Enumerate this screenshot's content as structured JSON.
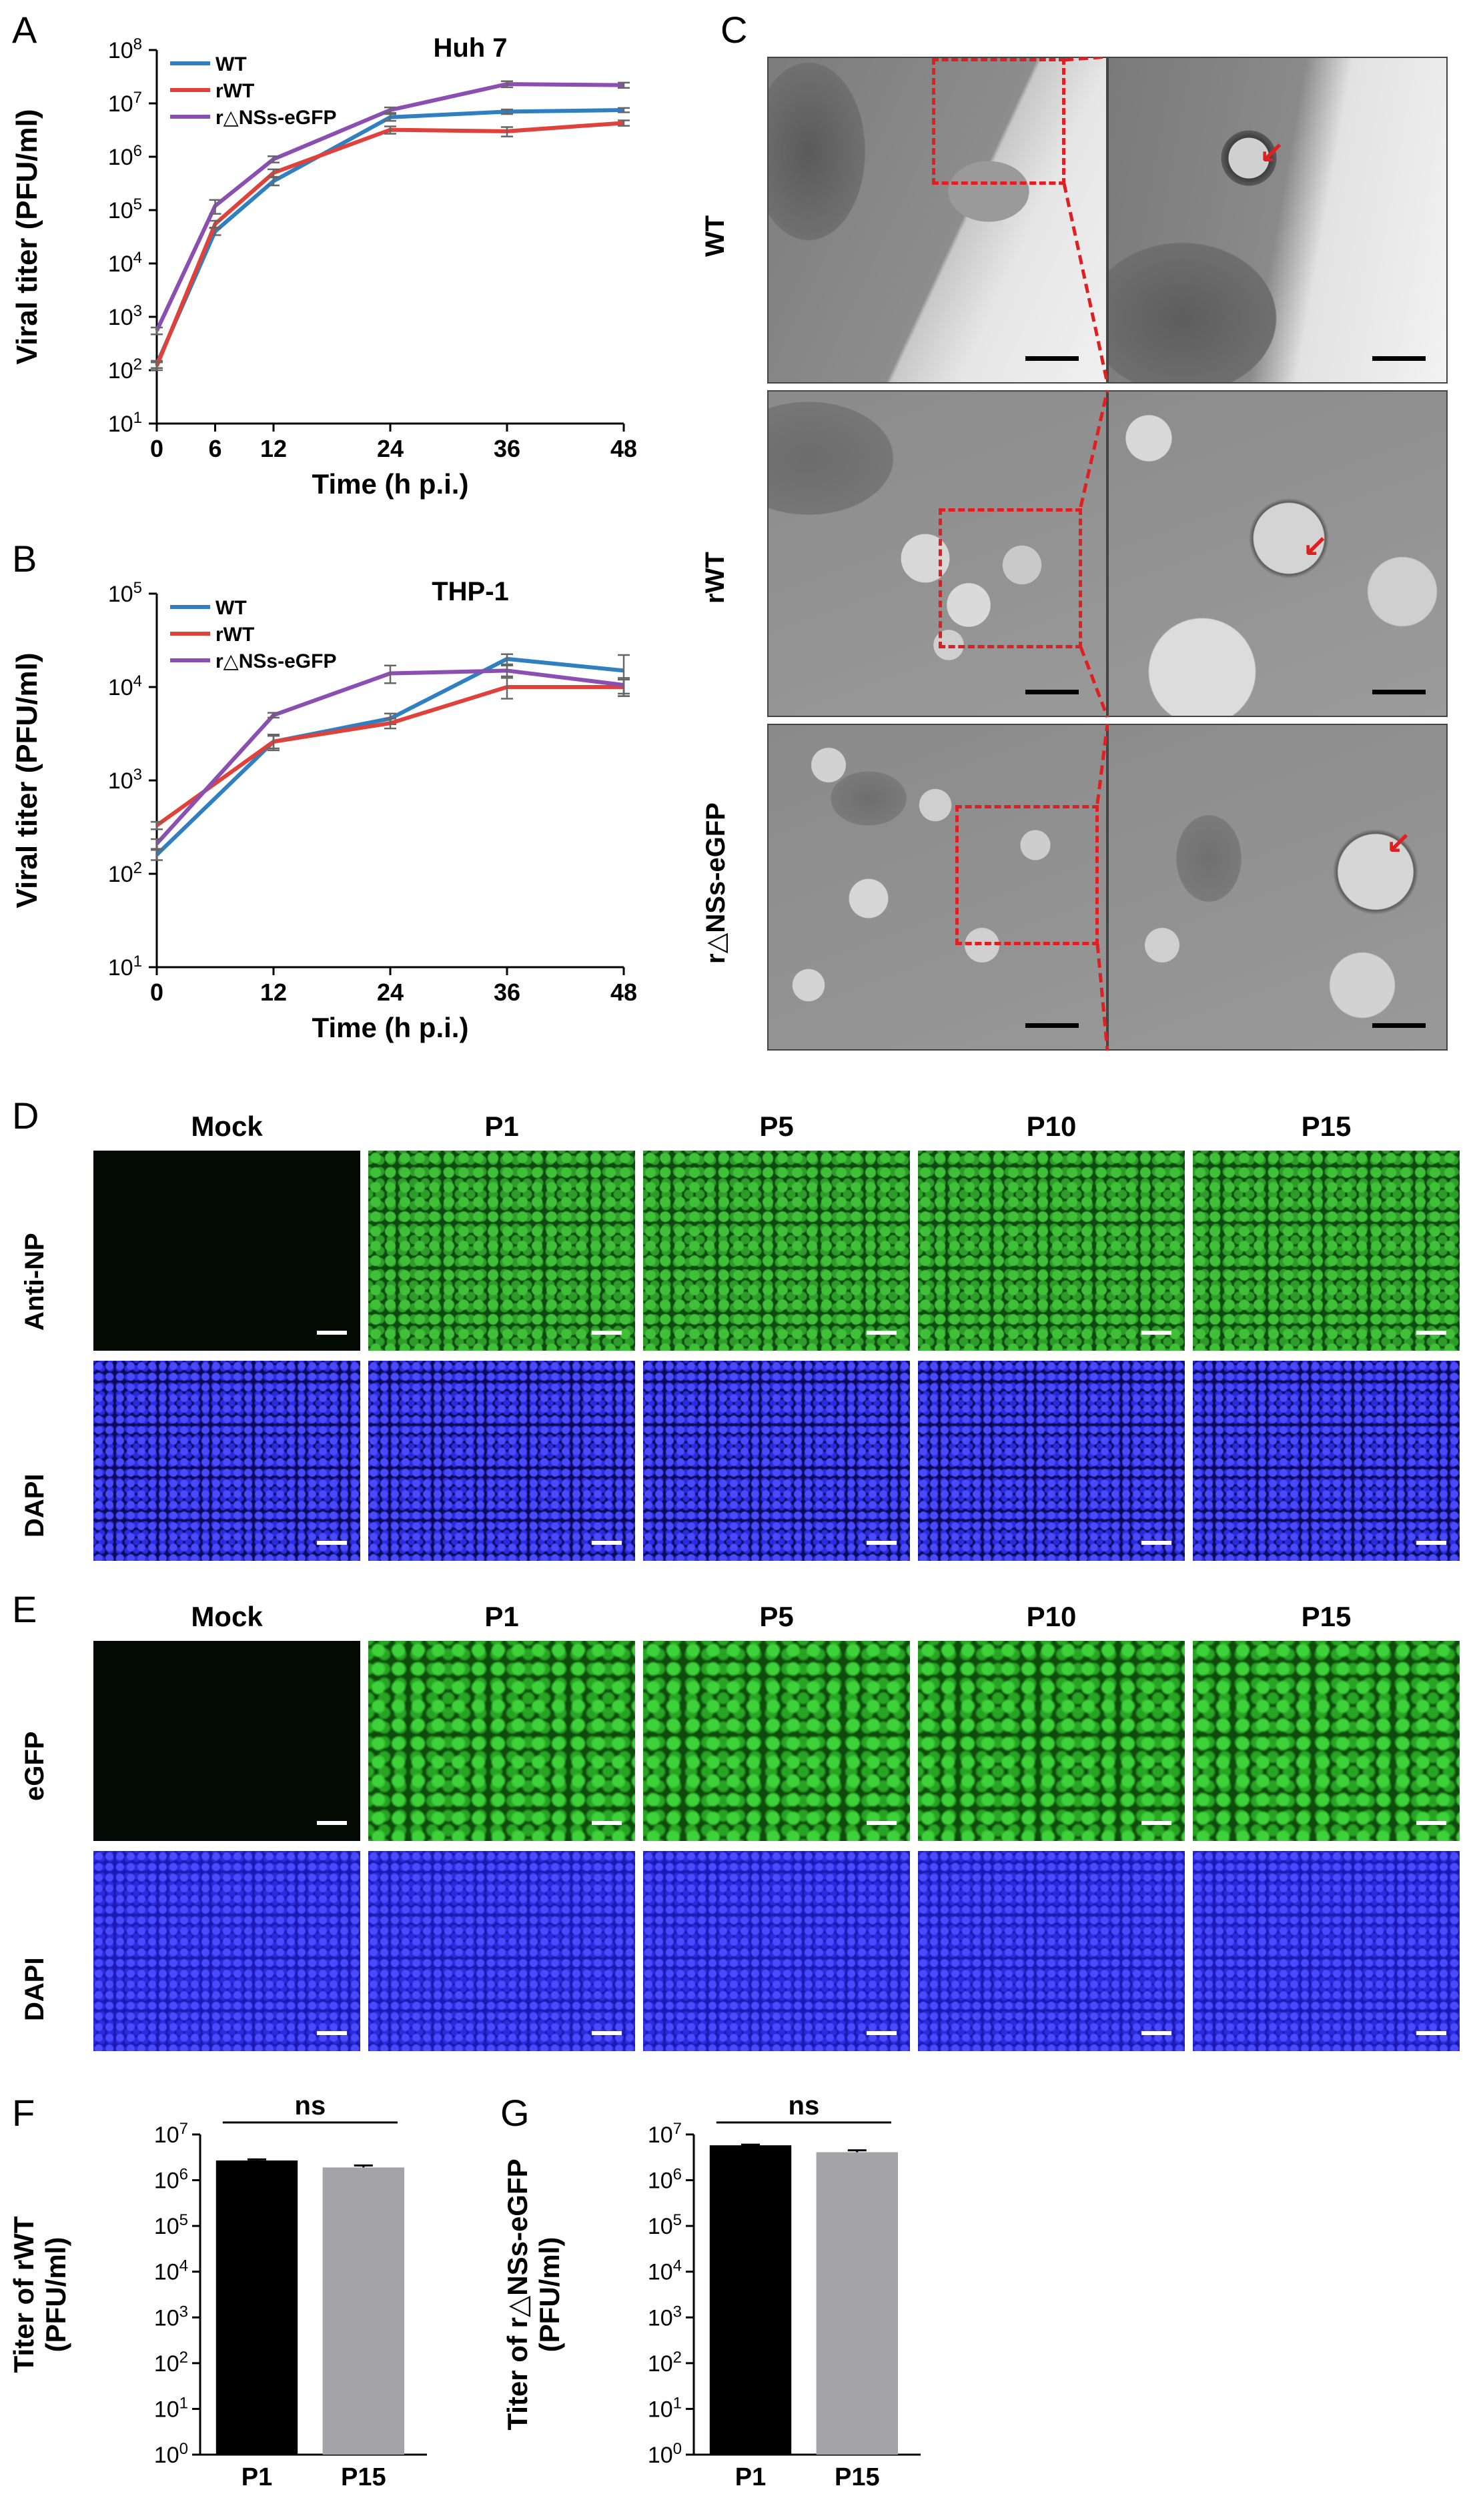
{
  "panels": {
    "A": "A",
    "B": "B",
    "C": "C",
    "D": "D",
    "E": "E",
    "F": "F",
    "G": "G"
  },
  "chart_data": [
    {
      "id": "A",
      "type": "line",
      "title": "Huh 7",
      "xlabel": "Time (h p.i.)",
      "ylabel": "Viral titer (PFU/ml)",
      "x": [
        0,
        6,
        12,
        24,
        36,
        48
      ],
      "x_ticks": [
        "0",
        "6",
        "12",
        "24",
        "36",
        "48"
      ],
      "yscale": "log",
      "ylim": [
        10,
        100000000
      ],
      "y_tick_exponents": [
        1,
        2,
        3,
        4,
        5,
        6,
        7,
        8
      ],
      "legend_position": "top-left",
      "series": [
        {
          "name": "WT",
          "color": "#2f7fc1",
          "values": [
            130,
            40000,
            350000,
            5500000,
            7000000,
            7500000
          ],
          "errors": [
            20,
            6000,
            60000,
            800000,
            700000,
            700000
          ]
        },
        {
          "name": "rWT",
          "color": "#e0413a",
          "values": [
            120,
            55000,
            500000,
            3200000,
            3000000,
            4300000
          ],
          "errors": [
            20,
            8000,
            80000,
            500000,
            600000,
            500000
          ]
        },
        {
          "name": "r△NSs-eGFP",
          "color": "#8a4fb0",
          "values": [
            550,
            120000,
            900000,
            7500000,
            23000000,
            22000000
          ],
          "errors": [
            80,
            35000,
            120000,
            900000,
            3000000,
            2500000
          ]
        }
      ]
    },
    {
      "id": "B",
      "type": "line",
      "title": "THP-1",
      "xlabel": "Time (h p.i.)",
      "ylabel": "Viral titer (PFU/ml)",
      "x": [
        0,
        12,
        24,
        36,
        48
      ],
      "x_ticks": [
        "0",
        "12",
        "24",
        "36",
        "48"
      ],
      "yscale": "log",
      "ylim": [
        10,
        100000
      ],
      "y_tick_exponents": [
        1,
        2,
        3,
        4,
        5
      ],
      "legend_position": "top-left",
      "series": [
        {
          "name": "WT",
          "color": "#2f7fc1",
          "values": [
            160,
            2600,
            4600,
            20000,
            15000
          ],
          "errors": [
            20,
            500,
            600,
            2500,
            7000
          ]
        },
        {
          "name": "rWT",
          "color": "#e0413a",
          "values": [
            330,
            2600,
            4100,
            10000,
            10000
          ],
          "errors": [
            30,
            400,
            500,
            2500,
            2000
          ]
        },
        {
          "name": "r△NSs-eGFP",
          "color": "#8a4fb0",
          "values": [
            210,
            5000,
            14000,
            15000,
            10500
          ],
          "errors": [
            25,
            300,
            3000,
            2000,
            2000
          ]
        }
      ]
    },
    {
      "id": "F",
      "type": "bar",
      "title": "",
      "ylabel_lines": [
        "Titer of rWT",
        "(PFU/ml)"
      ],
      "categories": [
        "P1",
        "P15"
      ],
      "values": [
        2700000,
        1900000
      ],
      "errors": [
        150000,
        200000
      ],
      "colors": [
        "#000000",
        "#a4a4a8"
      ],
      "yscale": "log",
      "ylim": [
        1,
        10000000
      ],
      "y_tick_exponents": [
        0,
        1,
        2,
        3,
        4,
        5,
        6,
        7
      ],
      "annotation": "ns"
    },
    {
      "id": "G",
      "type": "bar",
      "title": "",
      "ylabel_lines": [
        "Titer of  r△NSs-eGFP",
        "(PFU/ml)"
      ],
      "categories": [
        "P1",
        "P15"
      ],
      "values": [
        5800000,
        4100000
      ],
      "errors": [
        200000,
        400000
      ],
      "colors": [
        "#000000",
        "#a4a4a8"
      ],
      "yscale": "log",
      "ylim": [
        1,
        10000000
      ],
      "y_tick_exponents": [
        0,
        1,
        2,
        3,
        4,
        5,
        6,
        7
      ],
      "annotation": "ns"
    }
  ],
  "panel_C": {
    "rows": [
      "WT",
      "rWT",
      "r△NSs-eGFP"
    ]
  },
  "panel_D": {
    "columns": [
      "Mock",
      "P1",
      "P5",
      "P10",
      "P15"
    ],
    "rows": [
      "Anti-NP",
      "DAPI"
    ]
  },
  "panel_E": {
    "columns": [
      "Mock",
      "P1",
      "P5",
      "P10",
      "P15"
    ],
    "rows": [
      "eGFP",
      "DAPI"
    ]
  },
  "colors": {
    "green_signal": "#2fa82a",
    "blue_signal": "#2323e8",
    "em_gray": "#8a8a8a",
    "roi_red": "#e02020"
  }
}
